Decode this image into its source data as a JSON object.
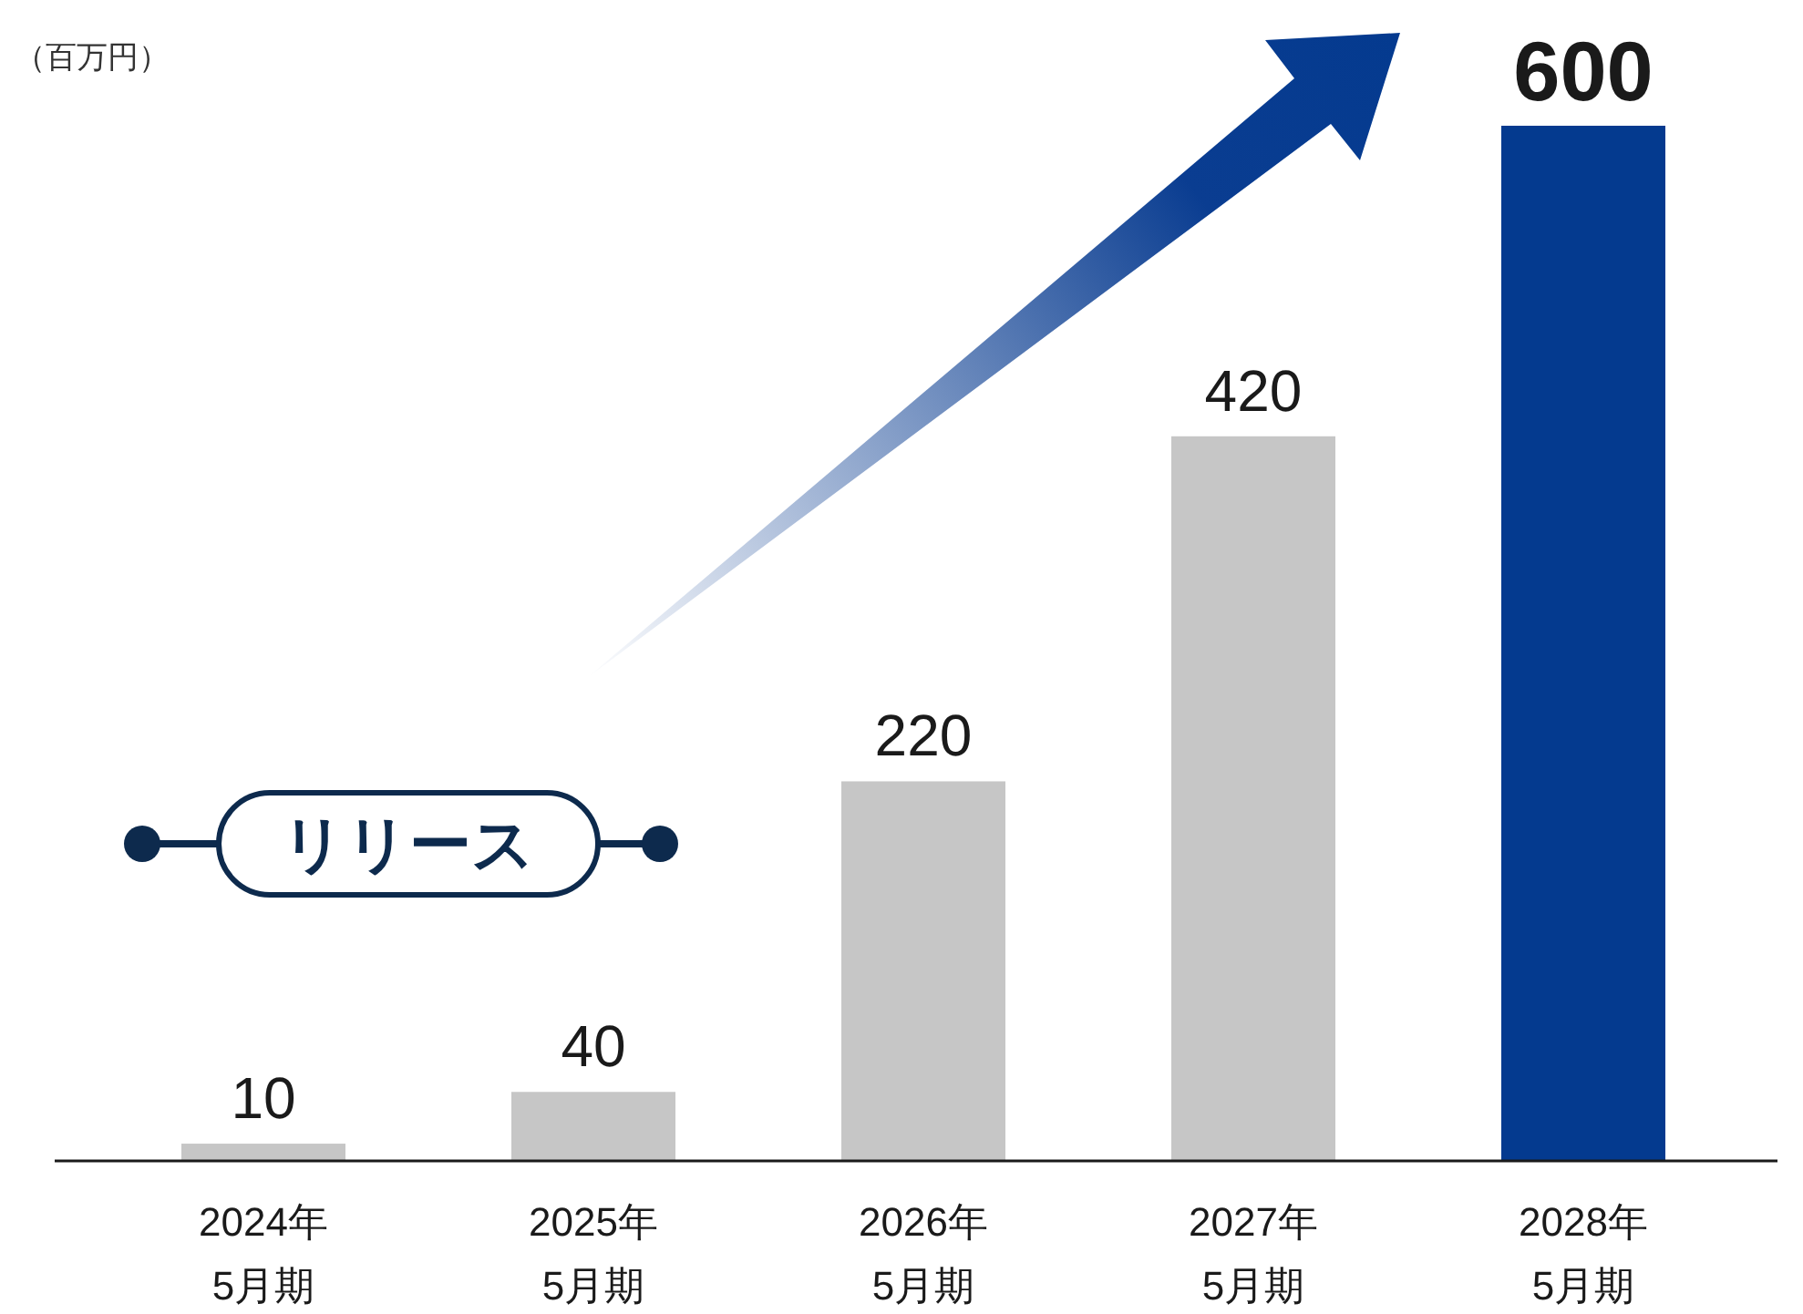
{
  "chart_data": {
    "type": "bar",
    "ylabel": "（百万円）",
    "categories": [
      "2024年\n5月期",
      "2025年\n5月期",
      "2026年\n5月期",
      "2027年\n5月期",
      "2028年\n5月期"
    ],
    "values": [
      10,
      40,
      220,
      420,
      600
    ],
    "colors": [
      "#c6c6c6",
      "#c6c6c6",
      "#c6c6c6",
      "#c6c6c6",
      "#043a8f"
    ],
    "data_labels": true,
    "annotations": [
      "リリース"
    ]
  }
}
